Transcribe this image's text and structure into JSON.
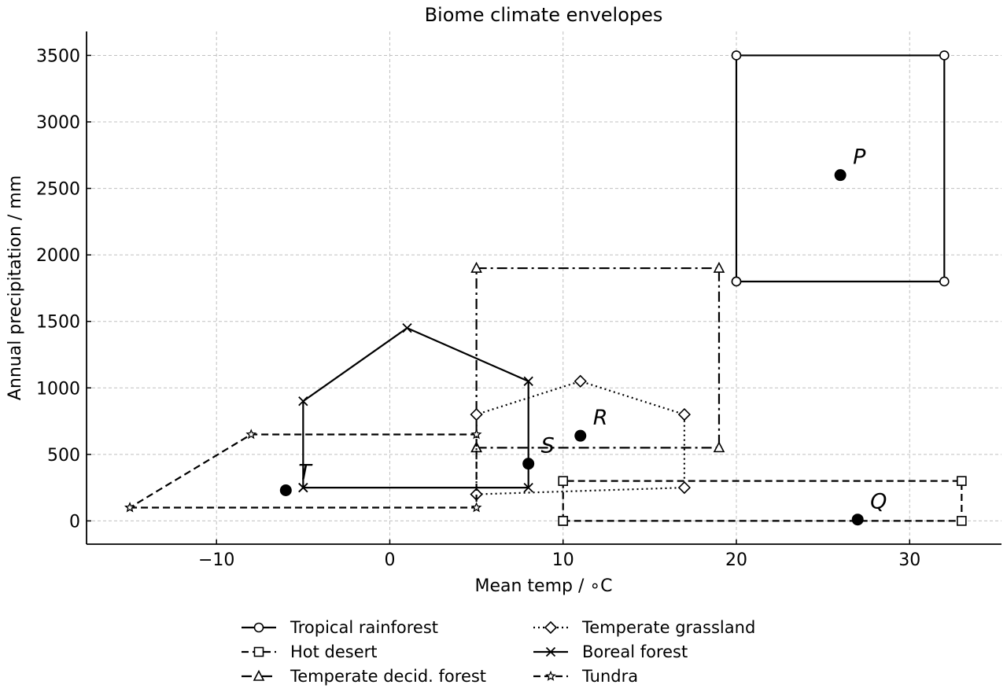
{
  "chart_data": {
    "type": "line",
    "title": "Biome climate envelopes",
    "xlabel": "Mean temp / $^\\circ$C",
    "xlabel_display": "Mean temp / ∘C",
    "ylabel": "Annual precipitation / mm",
    "xlim": [
      -17.5,
      35.3
    ],
    "ylim": [
      -175,
      3680
    ],
    "xticks": [
      -10,
      0,
      10,
      20,
      30
    ],
    "xtick_labels": [
      "−10",
      "0",
      "10",
      "20",
      "30"
    ],
    "yticks": [
      0,
      500,
      1000,
      1500,
      2000,
      2500,
      3000,
      3500
    ],
    "ytick_labels": [
      "0",
      "500",
      "1000",
      "1500",
      "2000",
      "2500",
      "3000",
      "3500"
    ],
    "grid": true,
    "legend_position": "below",
    "series": [
      {
        "name": "Tropical rainforest",
        "marker": "circle",
        "dash": "solid",
        "x": [
          20,
          32,
          32,
          20,
          20
        ],
        "y": [
          1800,
          1800,
          3500,
          3500,
          1800
        ]
      },
      {
        "name": "Hot desert",
        "marker": "square",
        "dash": "dashed",
        "x": [
          10,
          33,
          33,
          10,
          10
        ],
        "y": [
          0,
          0,
          300,
          300,
          0
        ]
      },
      {
        "name": "Temperate decid. forest",
        "marker": "triangle",
        "dash": "dashdot",
        "x": [
          5,
          19,
          19,
          5,
          5
        ],
        "y": [
          550,
          550,
          1900,
          1900,
          550
        ]
      },
      {
        "name": "Temperate grassland",
        "marker": "diamond",
        "dash": "dotted",
        "x": [
          5,
          17,
          17,
          11,
          5,
          5
        ],
        "y": [
          200,
          250,
          800,
          1050,
          800,
          200
        ]
      },
      {
        "name": "Boreal forest",
        "marker": "x",
        "dash": "solid",
        "x": [
          -5,
          8,
          8,
          1,
          -5,
          -5
        ],
        "y": [
          250,
          250,
          1050,
          1450,
          900,
          250
        ]
      },
      {
        "name": "Tundra",
        "marker": "star",
        "dash": "dashed",
        "x": [
          -15,
          5,
          5,
          -8,
          -15
        ],
        "y": [
          100,
          100,
          650,
          650,
          100
        ]
      }
    ],
    "points": [
      {
        "label": "P",
        "x": 26,
        "y": 2600
      },
      {
        "label": "Q",
        "x": 27,
        "y": 10
      },
      {
        "label": "R",
        "x": 11,
        "y": 640
      },
      {
        "label": "S",
        "x": 8,
        "y": 430
      },
      {
        "label": "T",
        "x": -6,
        "y": 230
      }
    ]
  }
}
